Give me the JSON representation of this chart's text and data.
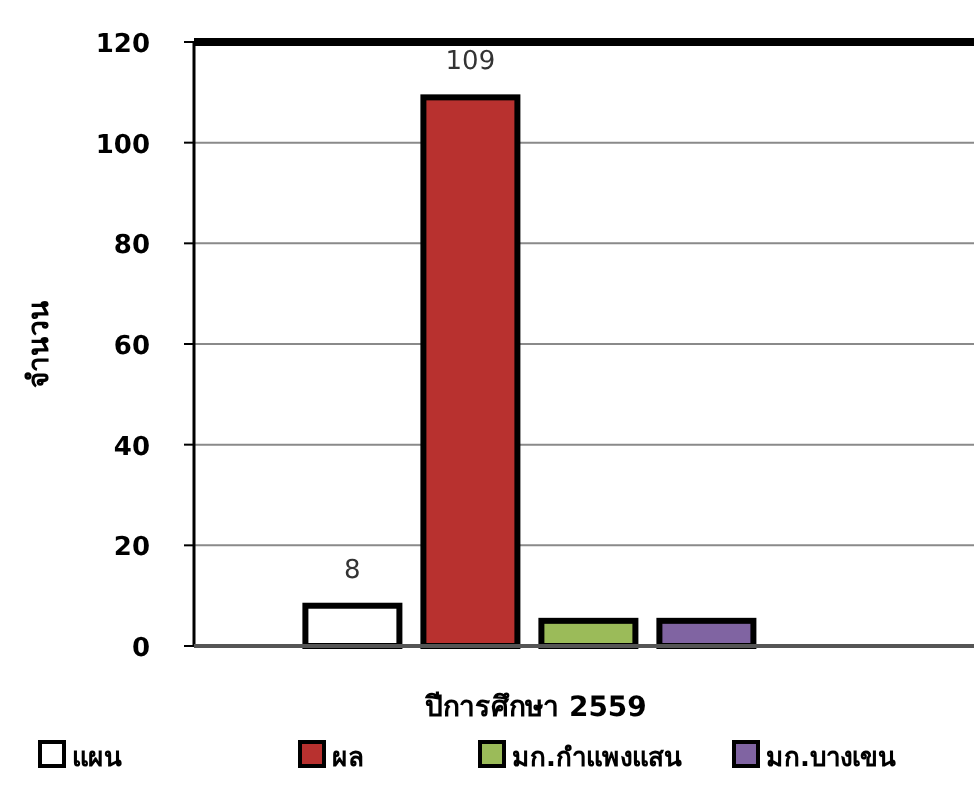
{
  "chart_data": {
    "type": "bar",
    "xlabel": "ปีการศึกษา 2559",
    "ylabel": "จำนวน",
    "categories": [
      null
    ],
    "series": [
      {
        "name": "แผน",
        "color": "#ffffff",
        "values": [
          8
        ],
        "value_labels": [
          "8"
        ]
      },
      {
        "name": "ผล",
        "color": "#b8312f",
        "values": [
          109
        ],
        "value_labels": [
          "109"
        ]
      },
      {
        "name": "มก.กำแพงแสน",
        "color": "#9bbb59",
        "values": [
          5
        ],
        "value_labels": [
          null
        ]
      },
      {
        "name": "มก.บางเขน",
        "color": "#8064a2",
        "values": [
          5
        ],
        "value_labels": [
          null
        ]
      }
    ],
    "ylim": [
      0,
      120
    ],
    "yticks": [
      0,
      20,
      40,
      60,
      80,
      100,
      120
    ],
    "grid": "y",
    "legend": "bottom"
  }
}
